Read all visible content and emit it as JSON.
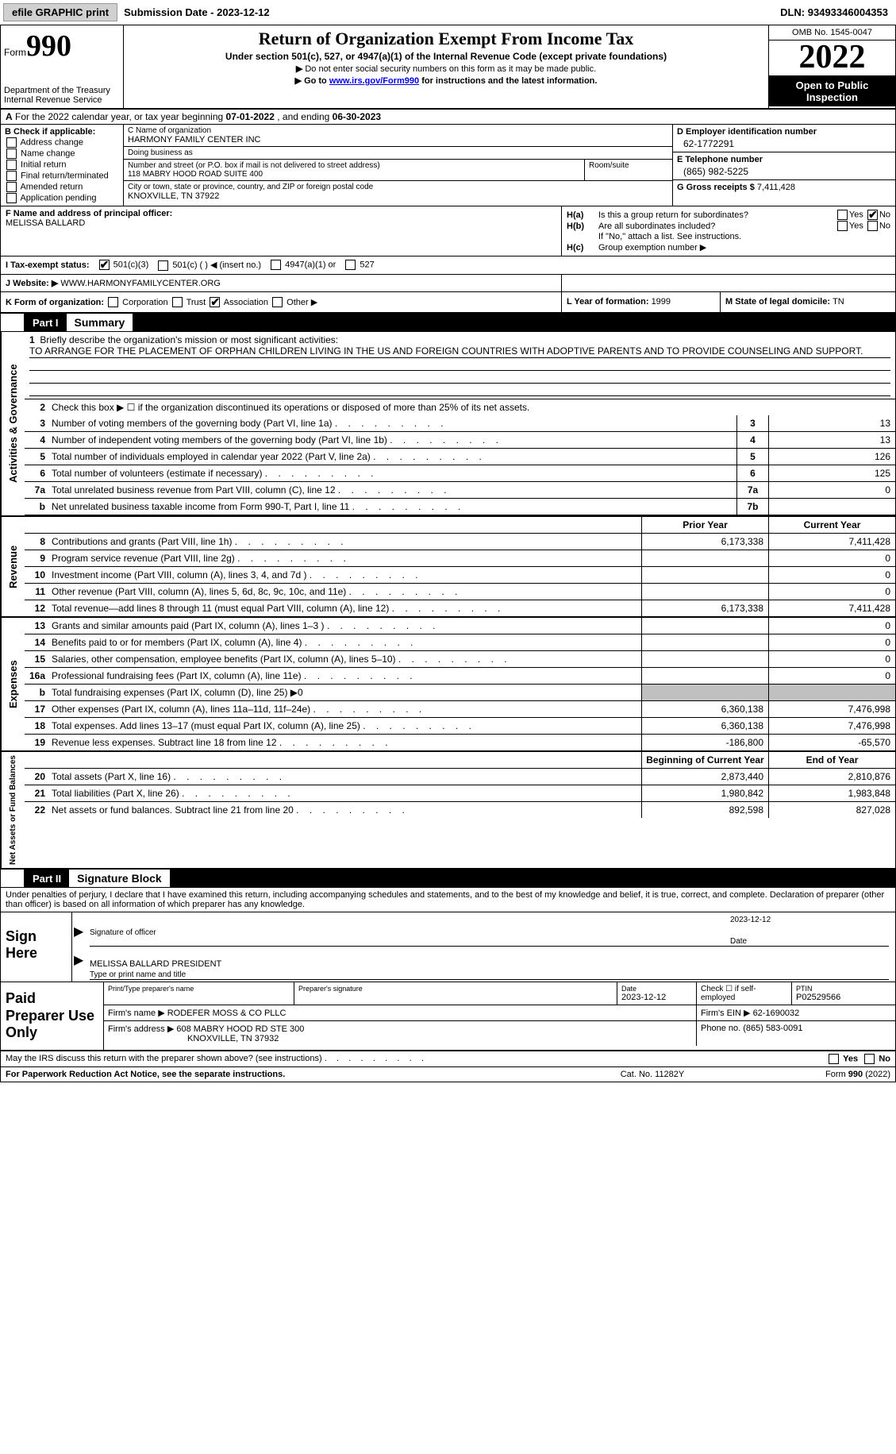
{
  "topbar": {
    "efile_btn": "efile GRAPHIC print",
    "sub_date_label": "Submission Date - ",
    "sub_date": "2023-12-12",
    "dln_label": "DLN: ",
    "dln": "93493346004353"
  },
  "header": {
    "form_label": "Form",
    "form_number": "990",
    "title": "Return of Organization Exempt From Income Tax",
    "subtitle1": "Under section 501(c), 527, or 4947(a)(1) of the Internal Revenue Code (except private foundations)",
    "subtitle2": "Do not enter social security numbers on this form as it may be made public.",
    "subtitle3_pre": "Go to ",
    "subtitle3_link": "www.irs.gov/Form990",
    "subtitle3_post": " for instructions and the latest information.",
    "dept": "Department of the Treasury\nInternal Revenue Service",
    "omb": "OMB No. 1545-0047",
    "tax_year": "2022",
    "open_inspection": "Open to Public Inspection"
  },
  "row_a": {
    "text_pre": "For the 2022 calendar year, or tax year beginning ",
    "begin": "07-01-2022",
    "mid": " , and ending ",
    "end": "06-30-2023",
    "a_label": "A"
  },
  "col_b": {
    "hdr": "B Check if applicable:",
    "items": [
      "Address change",
      "Name change",
      "Initial return",
      "Final return/terminated",
      "Amended return",
      "Application pending"
    ]
  },
  "col_c": {
    "name_lbl": "C Name of organization",
    "name_val": "HARMONY FAMILY CENTER INC",
    "dba_lbl": "Doing business as",
    "dba_val": "",
    "street_lbl": "Number and street (or P.O. box if mail is not delivered to street address)",
    "street_val": "118 MABRY HOOD ROAD SUITE 400",
    "room_lbl": "Room/suite",
    "room_val": "",
    "city_lbl": "City or town, state or province, country, and ZIP or foreign postal code",
    "city_val": "KNOXVILLE, TN  37922"
  },
  "col_deg": {
    "d_lbl": "D Employer identification number",
    "d_val": "62-1772291",
    "e_lbl": "E Telephone number",
    "e_val": "(865) 982-5225",
    "g_lbl": "G Gross receipts $ ",
    "g_val": "7,411,428"
  },
  "row_f": {
    "lbl": "F Name and address of principal officer:",
    "val": "MELISSA BALLARD"
  },
  "row_h": {
    "ha_k": "H(a)",
    "ha_t": "Is this a group return for subordinates?",
    "hb_k": "H(b)",
    "hb_t": "Are all subordinates included?",
    "hb_note": "If \"No,\" attach a list. See instructions.",
    "hc_k": "H(c)",
    "hc_t": "Group exemption number ▶",
    "yes": "Yes",
    "no": "No"
  },
  "row_i": {
    "lbl": "I  Tax-exempt status:",
    "opt1": "501(c)(3)",
    "opt2": "501(c) (   ) ◀ (insert no.)",
    "opt3": "4947(a)(1) or",
    "opt4": "527"
  },
  "row_j": {
    "lbl": "J  Website: ▶",
    "val": " WWW.HARMONYFAMILYCENTER.ORG"
  },
  "row_k": {
    "lbl": "K Form of organization:",
    "corp": "Corporation",
    "trust": "Trust",
    "assoc": "Association",
    "other": "Other ▶",
    "l_lbl": "L Year of formation: ",
    "l_val": "1999",
    "m_lbl": "M State of legal domicile: ",
    "m_val": "TN"
  },
  "part1": {
    "num": "Part I",
    "title": "Summary",
    "side_ag": "Activities & Governance",
    "side_rev": "Revenue",
    "side_exp": "Expenses",
    "side_na": "Net Assets or Fund Balances",
    "q1_lbl": "Briefly describe the organization's mission or most significant activities:",
    "q1_val": "TO ARRANGE FOR THE PLACEMENT OF ORPHAN CHILDREN LIVING IN THE US AND FOREIGN COUNTRIES WITH ADOPTIVE PARENTS AND TO PROVIDE COUNSELING AND SUPPORT.",
    "q2": "Check this box ▶ ☐ if the organization discontinued its operations or disposed of more than 25% of its net assets.",
    "rows_gov": [
      {
        "n": "3",
        "t": "Number of voting members of the governing body (Part VI, line 1a)",
        "b": "3",
        "v": "13"
      },
      {
        "n": "4",
        "t": "Number of independent voting members of the governing body (Part VI, line 1b)",
        "b": "4",
        "v": "13"
      },
      {
        "n": "5",
        "t": "Total number of individuals employed in calendar year 2022 (Part V, line 2a)",
        "b": "5",
        "v": "126"
      },
      {
        "n": "6",
        "t": "Total number of volunteers (estimate if necessary)",
        "b": "6",
        "v": "125"
      },
      {
        "n": "7a",
        "t": "Total unrelated business revenue from Part VIII, column (C), line 12",
        "b": "7a",
        "v": "0"
      },
      {
        "n": "b",
        "t": "Net unrelated business taxable income from Form 990-T, Part I, line 11",
        "b": "7b",
        "v": ""
      }
    ],
    "hdr_prior": "Prior Year",
    "hdr_curr": "Current Year",
    "rows_rev": [
      {
        "n": "8",
        "t": "Contributions and grants (Part VIII, line 1h)",
        "p": "6,173,338",
        "c": "7,411,428"
      },
      {
        "n": "9",
        "t": "Program service revenue (Part VIII, line 2g)",
        "p": "",
        "c": "0"
      },
      {
        "n": "10",
        "t": "Investment income (Part VIII, column (A), lines 3, 4, and 7d )",
        "p": "",
        "c": "0"
      },
      {
        "n": "11",
        "t": "Other revenue (Part VIII, column (A), lines 5, 6d, 8c, 9c, 10c, and 11e)",
        "p": "",
        "c": "0"
      },
      {
        "n": "12",
        "t": "Total revenue—add lines 8 through 11 (must equal Part VIII, column (A), line 12)",
        "p": "6,173,338",
        "c": "7,411,428"
      }
    ],
    "rows_exp": [
      {
        "n": "13",
        "t": "Grants and similar amounts paid (Part IX, column (A), lines 1–3 )",
        "p": "",
        "c": "0"
      },
      {
        "n": "14",
        "t": "Benefits paid to or for members (Part IX, column (A), line 4)",
        "p": "",
        "c": "0"
      },
      {
        "n": "15",
        "t": "Salaries, other compensation, employee benefits (Part IX, column (A), lines 5–10)",
        "p": "",
        "c": "0"
      },
      {
        "n": "16a",
        "t": "Professional fundraising fees (Part IX, column (A), line 11e)",
        "p": "",
        "c": "0"
      },
      {
        "n": "b",
        "t": "Total fundraising expenses (Part IX, column (D), line 25) ▶0",
        "p": "GREY",
        "c": "GREY"
      },
      {
        "n": "17",
        "t": "Other expenses (Part IX, column (A), lines 11a–11d, 11f–24e)",
        "p": "6,360,138",
        "c": "7,476,998"
      },
      {
        "n": "18",
        "t": "Total expenses. Add lines 13–17 (must equal Part IX, column (A), line 25)",
        "p": "6,360,138",
        "c": "7,476,998"
      },
      {
        "n": "19",
        "t": "Revenue less expenses. Subtract line 18 from line 12",
        "p": "-186,800",
        "c": "-65,570"
      }
    ],
    "hdr_beg": "Beginning of Current Year",
    "hdr_end": "End of Year",
    "rows_na": [
      {
        "n": "20",
        "t": "Total assets (Part X, line 16)",
        "p": "2,873,440",
        "c": "2,810,876"
      },
      {
        "n": "21",
        "t": "Total liabilities (Part X, line 26)",
        "p": "1,980,842",
        "c": "1,983,848"
      },
      {
        "n": "22",
        "t": "Net assets or fund balances. Subtract line 21 from line 20",
        "p": "892,598",
        "c": "827,028"
      }
    ]
  },
  "part2": {
    "num": "Part II",
    "title": "Signature Block",
    "intro": "Under penalties of perjury, I declare that I have examined this return, including accompanying schedules and statements, and to the best of my knowledge and belief, it is true, correct, and complete. Declaration of preparer (other than officer) is based on all information of which preparer has any knowledge.",
    "sign_here": "Sign Here",
    "sig_officer": "Signature of officer",
    "sig_date": "2023-12-12",
    "date_lbl": "Date",
    "officer_name": "MELISSA BALLARD  PRESIDENT",
    "officer_name_lbl": "Type or print name and title",
    "paid_lbl": "Paid Preparer Use Only",
    "prep_name_lbl": "Print/Type preparer's name",
    "prep_name": "",
    "prep_sig_lbl": "Preparer's signature",
    "prep_date_lbl": "Date",
    "prep_date": "2023-12-12",
    "check_if_lbl": "Check ☐ if self-employed",
    "ptin_lbl": "PTIN",
    "ptin": "P02529566",
    "firm_name_lbl": "Firm's name    ▶ ",
    "firm_name": "RODEFER MOSS & CO PLLC",
    "firm_ein_lbl": "Firm's EIN ▶ ",
    "firm_ein": "62-1690032",
    "firm_addr_lbl": "Firm's address ▶ ",
    "firm_addr": "608 MABRY HOOD RD STE 300",
    "firm_city": "KNOXVILLE, TN  37932",
    "phone_lbl": "Phone no. ",
    "phone": "(865) 583-0091",
    "may_irs": "May the IRS discuss this return with the preparer shown above? (see instructions)",
    "paperwork": "For Paperwork Reduction Act Notice, see the separate instructions.",
    "cat": "Cat. No. 11282Y",
    "form_foot": "Form 990 (2022)"
  }
}
